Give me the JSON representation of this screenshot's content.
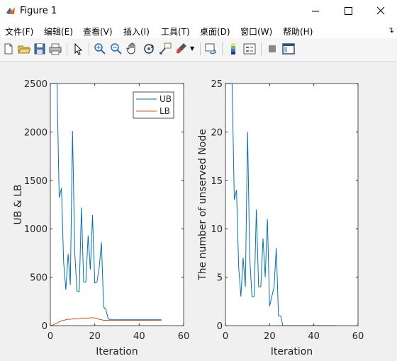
{
  "window": {
    "title": "Figure 1"
  },
  "menu": {
    "items": [
      "文件(F)",
      "编辑(E)",
      "查看(V)",
      "插入(I)",
      "工具(T)",
      "桌面(D)",
      "窗口(W)",
      "帮助(H)"
    ]
  },
  "toolbar": {
    "buttons": [
      "new-figure",
      "open-file",
      "save",
      "print",
      "edit-plot",
      "zoom-in",
      "zoom-out",
      "pan",
      "rotate-3d",
      "data-cursor",
      "brush",
      "link-plot",
      "insert-colorbar",
      "insert-legend",
      "hide-plot-tools",
      "show-plot-tools"
    ]
  },
  "colors": {
    "ub": "#0072BD",
    "lb": "#D95319"
  },
  "chart_data": [
    {
      "type": "line",
      "xlabel": "Iteration",
      "ylabel": "UB & LB",
      "xlim": [
        0,
        60
      ],
      "ylim": [
        0,
        2500
      ],
      "xticks": [
        "0",
        "20",
        "40",
        "60"
      ],
      "yticks": [
        "0",
        "500",
        "1000",
        "1500",
        "2000",
        "2500"
      ],
      "legend": {
        "position": "top-right",
        "entries": [
          "UB",
          "LB"
        ]
      },
      "series": [
        {
          "name": "UB",
          "x": [
            0,
            1,
            2,
            3,
            4,
            5,
            6,
            7,
            8,
            9,
            10,
            11,
            12,
            13,
            14,
            15,
            16,
            17,
            18,
            19,
            20,
            21,
            22,
            23,
            24,
            25,
            26,
            27,
            28,
            30,
            40,
            50
          ],
          "y": [
            2500,
            2500,
            2500,
            2500,
            1320,
            1420,
            650,
            370,
            740,
            420,
            2010,
            750,
            360,
            350,
            1220,
            450,
            450,
            930,
            580,
            1140,
            440,
            450,
            600,
            860,
            190,
            170,
            70,
            60,
            60,
            60,
            60,
            60
          ]
        },
        {
          "name": "LB",
          "x": [
            0,
            1,
            2,
            3,
            4,
            5,
            6,
            7,
            8,
            9,
            10,
            11,
            12,
            13,
            14,
            15,
            16,
            17,
            18,
            19,
            20,
            21,
            22,
            23,
            24,
            25,
            26,
            30,
            40,
            50
          ],
          "y": [
            0,
            5,
            15,
            25,
            40,
            50,
            55,
            60,
            65,
            65,
            70,
            72,
            70,
            72,
            75,
            78,
            75,
            78,
            80,
            82,
            78,
            75,
            65,
            60,
            55,
            55,
            55,
            55,
            55,
            55
          ]
        }
      ]
    },
    {
      "type": "line",
      "xlabel": "Iteration",
      "ylabel": "The number of unserved Node",
      "xlim": [
        0,
        60
      ],
      "ylim": [
        0,
        25
      ],
      "xticks": [
        "0",
        "20",
        "40",
        "60"
      ],
      "yticks": [
        "0",
        "5",
        "10",
        "15",
        "20",
        "25"
      ],
      "series": [
        {
          "name": "unserved",
          "x": [
            0,
            1,
            2,
            3,
            4,
            5,
            6,
            7,
            8,
            9,
            10,
            11,
            12,
            13,
            14,
            15,
            16,
            17,
            18,
            19,
            20,
            21,
            22,
            23,
            24,
            25,
            26,
            27,
            30,
            40,
            50
          ],
          "y": [
            25,
            25,
            25,
            25,
            13,
            14,
            6,
            3,
            7,
            4,
            20,
            7,
            3,
            3,
            12,
            4,
            4,
            9,
            5,
            11,
            2,
            3,
            4,
            8,
            1,
            1,
            0,
            0,
            0,
            0,
            0
          ]
        }
      ]
    }
  ]
}
